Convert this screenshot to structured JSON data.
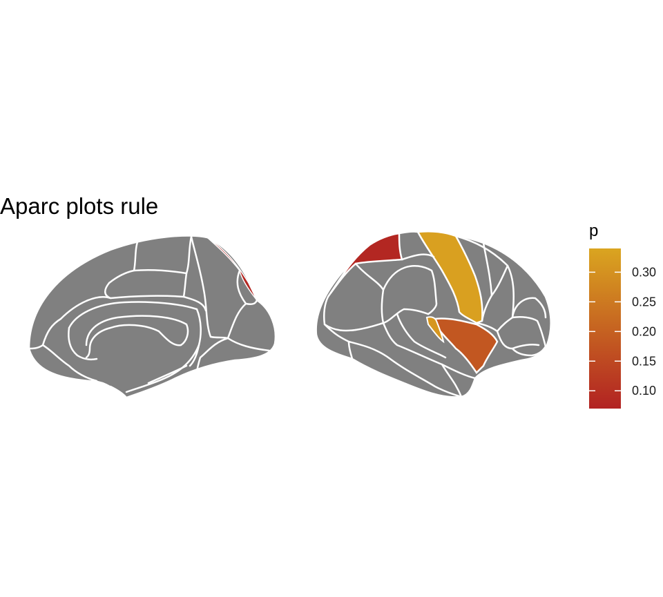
{
  "chart_data": {
    "type": "heatmap",
    "title": "Aparc plots rule",
    "legend": {
      "title": "p",
      "placement": "right",
      "range": [
        0.07,
        0.34
      ],
      "ticks": [
        0.3,
        0.25,
        0.2,
        0.15,
        0.1
      ],
      "tick_labels": [
        "0.30",
        "0.25",
        "0.20",
        "0.15",
        "0.10"
      ],
      "low_color": "#B22222",
      "high_color": "#DAA520"
    },
    "views": [
      "medial",
      "lateral"
    ],
    "regions": [
      {
        "view": "lateral",
        "p": 0.08
      },
      {
        "view": "lateral",
        "p": 0.33
      },
      {
        "view": "lateral",
        "p": 0.18
      },
      {
        "view": "lateral",
        "p": 0.31
      },
      {
        "view": "medial",
        "p": 0.08
      }
    ],
    "na_color": "#808080",
    "grid": false
  }
}
